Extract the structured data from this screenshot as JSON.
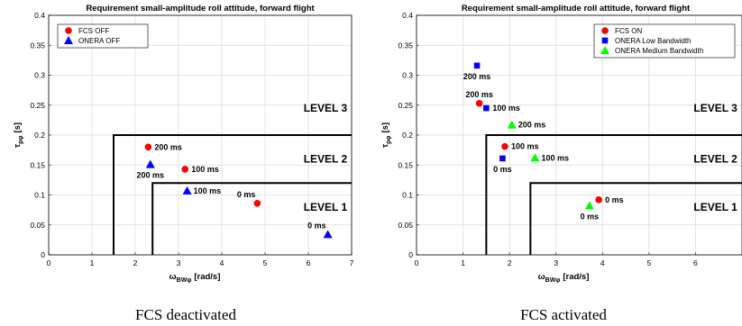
{
  "figure": {
    "captions": [
      "FCS deactivated",
      "FCS activated"
    ]
  },
  "colors": {
    "red": "#ff0000",
    "blue": "#0000ff",
    "green": "#00ff00"
  },
  "chart_data": [
    {
      "type": "scatter",
      "title": "Requirement small-amplitude roll attitude, forward flight",
      "xlabel": "ω",
      "xlabel_sub": "BWφ",
      "xlabel_unit": "[rad/s]",
      "ylabel": "τ",
      "ylabel_sub": "pφ",
      "ylabel_unit": "[s]",
      "xlim": [
        0,
        7
      ],
      "ylim": [
        0,
        0.4
      ],
      "xticks": [
        0,
        1,
        2,
        3,
        4,
        5,
        6,
        7
      ],
      "yticks": [
        0,
        0.05,
        0.1,
        0.15,
        0.2,
        0.25,
        0.3,
        0.35,
        0.4
      ],
      "xtick_labels": [
        "0",
        "1",
        "2",
        "3",
        "4",
        "5",
        "6",
        "7"
      ],
      "ytick_labels": [
        "0",
        "0.05",
        "0.1",
        "0.15",
        "0.2",
        "0.25",
        "0.3",
        "0.35",
        "0.4"
      ],
      "grid": true,
      "legend_position": "top-left",
      "boundaries": [
        {
          "points": [
            [
              1.5,
              0
            ],
            [
              1.5,
              0.2
            ],
            [
              7,
              0.2
            ]
          ]
        },
        {
          "points": [
            [
              2.4,
              0
            ],
            [
              2.4,
              0.12
            ],
            [
              7,
              0.12
            ]
          ]
        }
      ],
      "level_labels": [
        {
          "text": "LEVEL 3",
          "x": 6.9,
          "y": 0.245
        },
        {
          "text": "LEVEL 2",
          "x": 6.9,
          "y": 0.16
        },
        {
          "text": "LEVEL 1",
          "x": 6.9,
          "y": 0.08
        }
      ],
      "series": [
        {
          "name": "FCS OFF",
          "marker": "circle",
          "color": "#ff0000",
          "points": [
            {
              "x": 2.3,
              "y": 0.18,
              "label": "200 ms",
              "anchor": "right"
            },
            {
              "x": 3.15,
              "y": 0.143,
              "label": "100 ms",
              "anchor": "right"
            },
            {
              "x": 4.82,
              "y": 0.086,
              "label": "0 ms",
              "anchor": "above-left"
            }
          ]
        },
        {
          "name": "ONERA OFF",
          "marker": "triangle",
          "color": "#0000ff",
          "points": [
            {
              "x": 2.35,
              "y": 0.151,
              "label": "200 ms",
              "anchor": "below"
            },
            {
              "x": 3.2,
              "y": 0.107,
              "label": "100 ms",
              "anchor": "right"
            },
            {
              "x": 6.45,
              "y": 0.034,
              "label": "0 ms",
              "anchor": "above-left"
            }
          ]
        }
      ]
    },
    {
      "type": "scatter",
      "title": "Requirement small-amplitude roll attitude, forward flight",
      "xlabel": "ω",
      "xlabel_sub": "BWφ",
      "xlabel_unit": "[rad/s]",
      "ylabel": "τ",
      "ylabel_sub": "pφ",
      "ylabel_unit": "[s]",
      "xlim": [
        0,
        7
      ],
      "ylim": [
        0,
        0.4
      ],
      "xticks": [
        0,
        1,
        2,
        3,
        4,
        5,
        6
      ],
      "yticks": [
        0,
        0.05,
        0.1,
        0.15,
        0.2,
        0.25,
        0.3,
        0.35,
        0.4
      ],
      "xtick_labels": [
        "0",
        "1",
        "2",
        "3",
        "4",
        "5",
        "6"
      ],
      "ytick_labels": [
        "0",
        "0.05",
        "0.1",
        "0.15",
        "0.2",
        "0.25",
        "0.3",
        "0.35",
        "0.4"
      ],
      "grid": true,
      "legend_position": "top-right",
      "boundaries": [
        {
          "points": [
            [
              1.5,
              0
            ],
            [
              1.5,
              0.2
            ],
            [
              7,
              0.2
            ]
          ]
        },
        {
          "points": [
            [
              2.45,
              0
            ],
            [
              2.45,
              0.12
            ],
            [
              7,
              0.12
            ]
          ]
        }
      ],
      "level_labels": [
        {
          "text": "LEVEL 3",
          "x": 6.9,
          "y": 0.245
        },
        {
          "text": "LEVEL 2",
          "x": 6.9,
          "y": 0.16
        },
        {
          "text": "LEVEL 1",
          "x": 6.9,
          "y": 0.08
        }
      ],
      "series": [
        {
          "name": "FCS ON",
          "marker": "circle",
          "color": "#ff0000",
          "points": [
            {
              "x": 1.35,
              "y": 0.253,
              "label": "200 ms",
              "anchor": "above"
            },
            {
              "x": 1.9,
              "y": 0.181,
              "label": "100 ms",
              "anchor": "right"
            },
            {
              "x": 3.92,
              "y": 0.092,
              "label": "0 ms",
              "anchor": "right"
            }
          ]
        },
        {
          "name": "ONERA Low Bandwidth",
          "marker": "square",
          "color": "#0000ff",
          "points": [
            {
              "x": 1.3,
              "y": 0.316,
              "label": "200 ms",
              "anchor": "below"
            },
            {
              "x": 1.5,
              "y": 0.245,
              "label": "100 ms",
              "anchor": "right"
            },
            {
              "x": 1.85,
              "y": 0.161,
              "label": "0 ms",
              "anchor": "below"
            }
          ]
        },
        {
          "name": "ONERA Medium Bandwidth",
          "marker": "triangle",
          "color": "#00ff00",
          "points": [
            {
              "x": 2.05,
              "y": 0.217,
              "label": "200 ms",
              "anchor": "right"
            },
            {
              "x": 2.55,
              "y": 0.162,
              "label": "100 ms",
              "anchor": "right"
            },
            {
              "x": 3.72,
              "y": 0.082,
              "label": "0 ms",
              "anchor": "below"
            }
          ]
        }
      ]
    }
  ]
}
